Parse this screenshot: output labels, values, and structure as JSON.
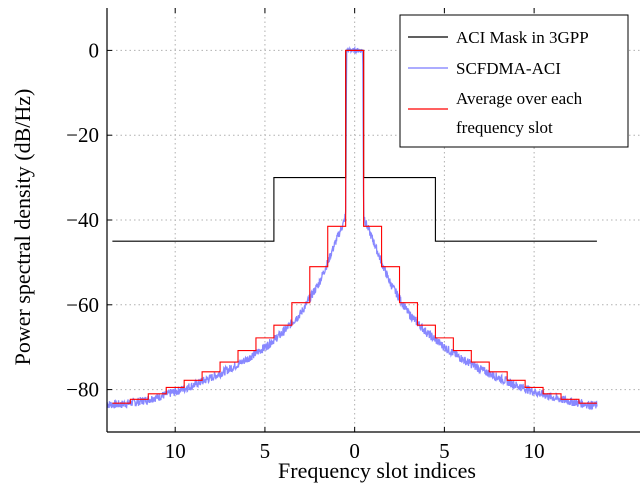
{
  "chart_data": {
    "type": "line",
    "title": "",
    "xlabel": "Frequency slot indices",
    "ylabel": "Power spectral density (dB/Hz)",
    "xlim": [
      -13.8,
      15.9
    ],
    "ylim": [
      -90,
      10
    ],
    "grid": true,
    "legend_position": "top-right",
    "x_ticks": [
      {
        "x": -10,
        "label": "10"
      },
      {
        "x": -5,
        "label": "5"
      },
      {
        "x": 0,
        "label": "0"
      },
      {
        "x": 5,
        "label": "5"
      },
      {
        "x": 10,
        "label": "10"
      }
    ],
    "y_ticks": [
      {
        "y": 0,
        "label": "0"
      },
      {
        "y": -20,
        "label": "−20"
      },
      {
        "y": -40,
        "label": "−40"
      },
      {
        "y": -60,
        "label": "−60"
      },
      {
        "y": -80,
        "label": "−80"
      }
    ],
    "series": [
      {
        "name": "ACI Mask in 3GPP",
        "color": "#000000",
        "style": "step",
        "points": [
          [
            -13.5,
            -45
          ],
          [
            -4.5,
            -45
          ],
          [
            -4.5,
            -30
          ],
          [
            -0.5,
            -30
          ],
          [
            -0.5,
            0
          ],
          [
            0.5,
            0
          ],
          [
            0.5,
            -30
          ],
          [
            4.5,
            -30
          ],
          [
            4.5,
            -45
          ],
          [
            13.5,
            -45
          ]
        ]
      },
      {
        "name": "SCFDMA-ACI",
        "color": "#7b7bff",
        "style": "noisy-line",
        "points": [
          [
            -13.8,
            -83.5
          ],
          [
            -13,
            -83.5
          ],
          [
            -12,
            -82.8
          ],
          [
            -11,
            -81.8
          ],
          [
            -10,
            -80.5
          ],
          [
            -9,
            -79
          ],
          [
            -8,
            -77.2
          ],
          [
            -7,
            -75.2
          ],
          [
            -6,
            -72.8
          ],
          [
            -5,
            -70
          ],
          [
            -4,
            -66.5
          ],
          [
            -3,
            -62
          ],
          [
            -2.5,
            -58.5
          ],
          [
            -2,
            -55
          ],
          [
            -1.5,
            -50
          ],
          [
            -1,
            -44.5
          ],
          [
            -0.6,
            -40.5
          ],
          [
            -0.5,
            -38.5
          ],
          [
            -0.45,
            0
          ],
          [
            0.45,
            0
          ],
          [
            0.5,
            -38.5
          ],
          [
            0.6,
            -40.5
          ],
          [
            1,
            -44.5
          ],
          [
            1.5,
            -50
          ],
          [
            2,
            -55
          ],
          [
            2.5,
            -58.5
          ],
          [
            3,
            -62
          ],
          [
            4,
            -66.5
          ],
          [
            5,
            -70
          ],
          [
            6,
            -72.8
          ],
          [
            7,
            -75.2
          ],
          [
            8,
            -77.2
          ],
          [
            9,
            -79
          ],
          [
            10,
            -80.5
          ],
          [
            11,
            -81.8
          ],
          [
            12,
            -82.8
          ],
          [
            13,
            -83.5
          ],
          [
            13.5,
            -83.8
          ]
        ]
      },
      {
        "name": "Average over each frequency slot",
        "color": "#ff0000",
        "style": "step",
        "levels": {
          "-13": -83.5,
          "-12": -83.2,
          "-11": -82.3,
          "-10": -81,
          "-9": -79.5,
          "-8": -77.8,
          "-7": -75.8,
          "-6": -73.5,
          "-5": -70.8,
          "-4": -67.8,
          "-3": -64.8,
          "-2": -59.5,
          "-1": -51,
          "0": -41.5,
          "1": -41.5,
          "2": -51,
          "3": -59.5,
          "4": -64.8,
          "5": -67.8,
          "6": -70.8,
          "7": -73.5,
          "8": -75.8,
          "9": -77.8,
          "10": -79.5,
          "11": -81,
          "12": -82.3,
          "13": -83.2
        },
        "center_level": 0,
        "x_start": -13.5,
        "x_end": 13.5
      }
    ]
  },
  "legend": {
    "items": [
      {
        "label": "ACI Mask in 3GPP",
        "color": "#000000"
      },
      {
        "label": "SCFDMA-ACI",
        "color": "#7b7bff"
      },
      {
        "label": "Average over each",
        "label_line2": "frequency slot",
        "color": "#ff0000"
      }
    ]
  }
}
